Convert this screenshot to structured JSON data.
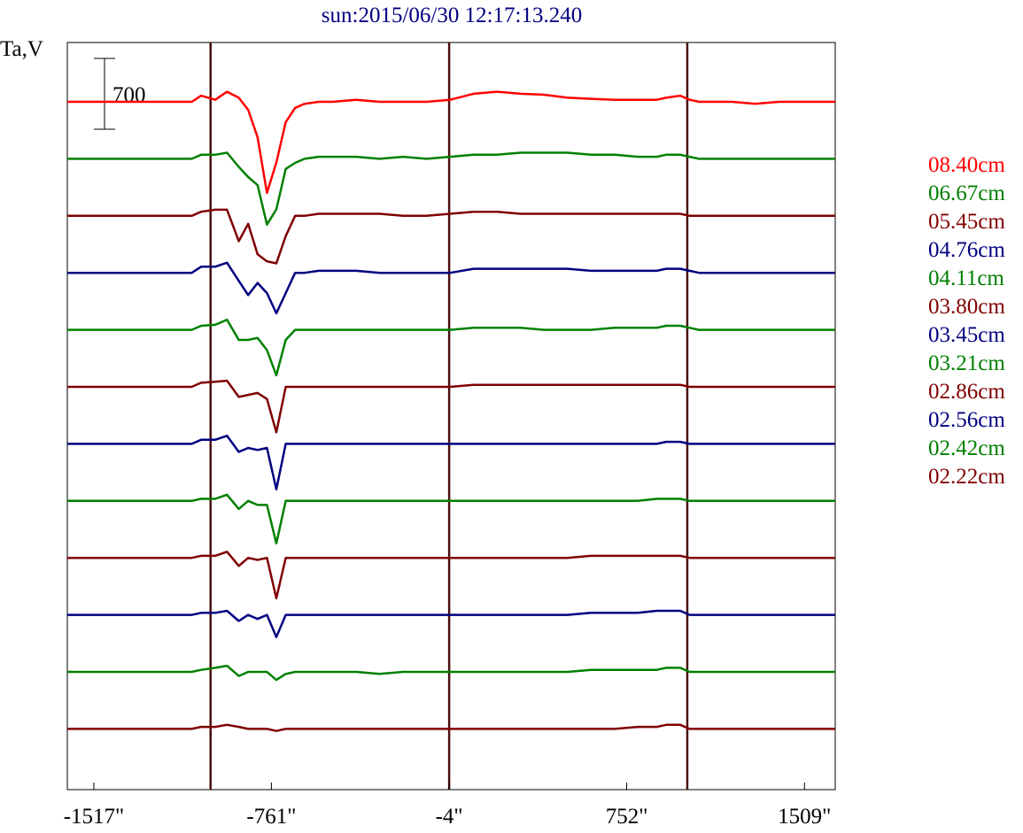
{
  "title": "sun:2015/06/30 12:17:13.240",
  "ylabel": "Ta,V",
  "scale_bar_label": "700",
  "colors": {
    "red": "#ff0000",
    "green": "#008000",
    "maroon": "#800000",
    "navy": "#000080",
    "vline": "#4a0d0d"
  },
  "chart_data": {
    "type": "line",
    "title": "sun:2015/06/30 12:17:13.240",
    "ylabel": "Ta,V",
    "xlabel": "",
    "xlim": [
      -1630,
      1640
    ],
    "x_ticks": [
      {
        "value": -1517,
        "label": "-1517\""
      },
      {
        "value": -761,
        "label": "-761\""
      },
      {
        "value": -4,
        "label": "-4\""
      },
      {
        "value": 752,
        "label": "752\""
      },
      {
        "value": 1509,
        "label": "1509\""
      }
    ],
    "vertical_markers": [
      -1020,
      -4,
      1010
    ],
    "scale_bar_value": 700,
    "grid": false,
    "legend_position": "right",
    "x": [
      -1630,
      -1500,
      -1350,
      -1200,
      -1100,
      -1060,
      -1000,
      -950,
      -900,
      -860,
      -820,
      -780,
      -740,
      -700,
      -660,
      -620,
      -560,
      -500,
      -400,
      -300,
      -200,
      -100,
      0,
      100,
      200,
      300,
      400,
      500,
      600,
      700,
      800,
      880,
      920,
      980,
      1020,
      1060,
      1100,
      1200,
      1300,
      1400,
      1500,
      1640
    ],
    "series": [
      {
        "name": "08.40cm",
        "color": "#ff0000",
        "values": [
          0,
          0,
          0,
          0,
          0,
          60,
          20,
          100,
          40,
          -80,
          -350,
          -900,
          -600,
          -200,
          -60,
          -20,
          0,
          0,
          20,
          0,
          0,
          0,
          20,
          80,
          100,
          80,
          70,
          40,
          30,
          20,
          20,
          20,
          40,
          60,
          20,
          0,
          0,
          0,
          -20,
          0,
          0,
          0
        ]
      },
      {
        "name": "06.67cm",
        "color": "#008000",
        "values": [
          0,
          0,
          0,
          0,
          0,
          40,
          40,
          60,
          -80,
          -180,
          -260,
          -650,
          -500,
          -100,
          -40,
          0,
          20,
          20,
          20,
          0,
          20,
          0,
          20,
          40,
          40,
          60,
          60,
          60,
          40,
          40,
          20,
          20,
          40,
          40,
          20,
          0,
          0,
          0,
          0,
          0,
          0,
          0
        ]
      },
      {
        "name": "05.45cm",
        "color": "#800000",
        "values": [
          0,
          0,
          0,
          0,
          0,
          40,
          60,
          60,
          -250,
          -80,
          -380,
          -450,
          -470,
          -200,
          0,
          0,
          20,
          20,
          20,
          20,
          0,
          0,
          20,
          40,
          40,
          20,
          20,
          20,
          20,
          20,
          20,
          20,
          20,
          20,
          0,
          0,
          0,
          0,
          0,
          0,
          0,
          0
        ]
      },
      {
        "name": "04.76cm",
        "color": "#000080",
        "values": [
          0,
          0,
          0,
          0,
          0,
          60,
          60,
          100,
          -80,
          -220,
          -100,
          -200,
          -400,
          -200,
          0,
          0,
          20,
          20,
          20,
          0,
          0,
          0,
          0,
          40,
          40,
          40,
          40,
          40,
          20,
          20,
          20,
          20,
          40,
          40,
          20,
          0,
          0,
          0,
          0,
          0,
          0,
          0
        ]
      },
      {
        "name": "04.11cm",
        "color": "#008000",
        "values": [
          0,
          0,
          0,
          0,
          0,
          40,
          50,
          100,
          -100,
          -100,
          -80,
          -200,
          -450,
          -100,
          0,
          0,
          0,
          0,
          0,
          0,
          0,
          0,
          0,
          20,
          20,
          20,
          0,
          0,
          0,
          20,
          20,
          20,
          40,
          40,
          20,
          0,
          0,
          0,
          0,
          0,
          0,
          0
        ]
      },
      {
        "name": "03.80cm",
        "color": "#800000",
        "values": [
          0,
          0,
          0,
          0,
          0,
          40,
          50,
          60,
          -100,
          -80,
          -60,
          -120,
          -450,
          0,
          0,
          0,
          0,
          0,
          0,
          0,
          0,
          0,
          0,
          20,
          20,
          20,
          20,
          20,
          20,
          20,
          20,
          20,
          20,
          20,
          0,
          0,
          0,
          0,
          0,
          0,
          0,
          0
        ]
      },
      {
        "name": "03.45cm",
        "color": "#000080",
        "values": [
          0,
          0,
          0,
          0,
          0,
          40,
          40,
          80,
          -80,
          -40,
          -60,
          -40,
          -450,
          0,
          0,
          0,
          0,
          0,
          0,
          0,
          0,
          0,
          0,
          0,
          0,
          0,
          0,
          0,
          0,
          0,
          0,
          0,
          20,
          20,
          0,
          0,
          0,
          0,
          0,
          0,
          0,
          0
        ]
      },
      {
        "name": "03.21cm",
        "color": "#008000",
        "values": [
          0,
          0,
          0,
          0,
          0,
          20,
          20,
          60,
          -80,
          0,
          -40,
          -40,
          -420,
          0,
          0,
          0,
          0,
          0,
          0,
          0,
          0,
          0,
          0,
          0,
          0,
          0,
          0,
          0,
          0,
          0,
          0,
          20,
          20,
          20,
          0,
          0,
          0,
          0,
          0,
          0,
          0,
          0
        ]
      },
      {
        "name": "02.86cm",
        "color": "#800000",
        "values": [
          0,
          0,
          0,
          0,
          0,
          20,
          20,
          60,
          -80,
          0,
          -20,
          0,
          -400,
          0,
          0,
          0,
          0,
          0,
          0,
          0,
          0,
          0,
          0,
          0,
          0,
          0,
          0,
          0,
          20,
          20,
          20,
          20,
          20,
          20,
          0,
          0,
          0,
          0,
          0,
          0,
          0,
          0
        ]
      },
      {
        "name": "02.56cm",
        "color": "#000080",
        "values": [
          0,
          0,
          0,
          0,
          0,
          20,
          20,
          40,
          -60,
          0,
          -40,
          0,
          -220,
          0,
          0,
          0,
          0,
          0,
          0,
          0,
          0,
          0,
          0,
          0,
          0,
          0,
          0,
          0,
          20,
          20,
          20,
          40,
          40,
          40,
          0,
          0,
          0,
          0,
          0,
          0,
          0,
          0
        ]
      },
      {
        "name": "02.42cm",
        "color": "#008000",
        "values": [
          0,
          0,
          0,
          0,
          0,
          20,
          40,
          60,
          -40,
          0,
          0,
          0,
          -80,
          -20,
          0,
          0,
          0,
          0,
          0,
          -20,
          0,
          0,
          0,
          0,
          0,
          0,
          0,
          0,
          20,
          20,
          20,
          20,
          40,
          40,
          0,
          0,
          0,
          0,
          0,
          0,
          0,
          0
        ]
      },
      {
        "name": "02.22cm",
        "color": "#800000",
        "values": [
          0,
          0,
          0,
          0,
          0,
          20,
          20,
          40,
          20,
          0,
          0,
          0,
          -20,
          0,
          0,
          0,
          0,
          0,
          0,
          0,
          0,
          0,
          0,
          0,
          0,
          0,
          0,
          0,
          0,
          0,
          20,
          20,
          40,
          40,
          0,
          0,
          0,
          0,
          0,
          0,
          0,
          0
        ]
      }
    ]
  }
}
